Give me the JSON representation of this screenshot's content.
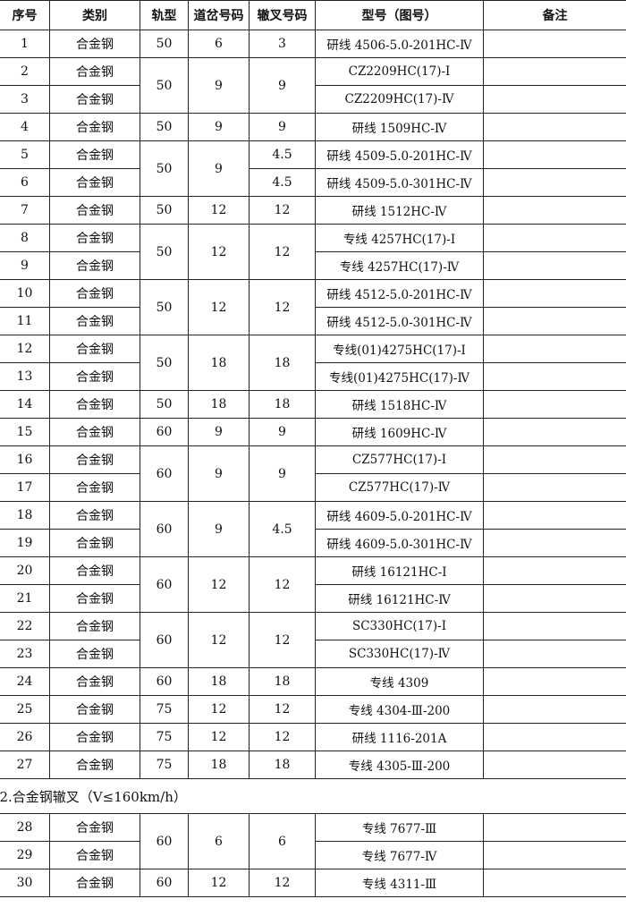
{
  "headers": [
    "序号",
    "类别",
    "轨型",
    "道岔号码",
    "辙叉号码",
    "型号（图号）",
    "备注"
  ],
  "sections": [
    {
      "title": "",
      "groups": [
        {
          "rail": "50",
          "turnout": "6",
          "frog": "3",
          "items": [
            {
              "no": "1",
              "type": "合金钢",
              "model": "研线 4506-5.0-201HC-Ⅳ",
              "note": ""
            }
          ]
        },
        {
          "rail": "50",
          "turnout": "9",
          "frog": "9",
          "items": [
            {
              "no": "2",
              "type": "合金钢",
              "model": "CZ2209HC(17)-Ⅰ",
              "note": ""
            },
            {
              "no": "3",
              "type": "合金钢",
              "model": "CZ2209HC(17)-Ⅳ",
              "note": ""
            }
          ]
        },
        {
          "rail": "50",
          "turnout": "9",
          "frog": "9",
          "items": [
            {
              "no": "4",
              "type": "合金钢",
              "model": "研线 1509HC-Ⅳ",
              "note": ""
            }
          ]
        },
        {
          "rail": "50",
          "turnout": "9",
          "items": [
            {
              "no": "5",
              "type": "合金钢",
              "frog": "4.5",
              "model": "研线 4509-5.0-201HC-Ⅳ",
              "note": ""
            },
            {
              "no": "6",
              "type": "合金钢",
              "frog": "4.5",
              "model": "研线 4509-5.0-301HC-Ⅳ",
              "note": ""
            }
          ]
        },
        {
          "rail": "50",
          "turnout": "12",
          "frog": "12",
          "items": [
            {
              "no": "7",
              "type": "合金钢",
              "model": "研线 1512HC-Ⅳ",
              "note": ""
            }
          ]
        },
        {
          "rail": "50",
          "turnout": "12",
          "frog": "12",
          "items": [
            {
              "no": "8",
              "type": "合金钢",
              "model": "专线 4257HC(17)-Ⅰ",
              "note": ""
            },
            {
              "no": "9",
              "type": "合金钢",
              "model": "专线 4257HC(17)-Ⅳ",
              "note": ""
            }
          ]
        },
        {
          "rail": "50",
          "turnout": "12",
          "frog": "12",
          "items": [
            {
              "no": "10",
              "type": "合金钢",
              "model": "研线 4512-5.0-201HC-Ⅳ",
              "note": ""
            },
            {
              "no": "11",
              "type": "合金钢",
              "model": "研线 4512-5.0-301HC-Ⅳ",
              "note": ""
            }
          ]
        },
        {
          "rail": "50",
          "turnout": "18",
          "frog": "18",
          "items": [
            {
              "no": "12",
              "type": "合金钢",
              "model": "专线(01)4275HC(17)-Ⅰ",
              "note": ""
            },
            {
              "no": "13",
              "type": "合金钢",
              "model": "专线(01)4275HC(17)-Ⅳ",
              "note": ""
            }
          ]
        },
        {
          "rail": "50",
          "turnout": "18",
          "frog": "18",
          "items": [
            {
              "no": "14",
              "type": "合金钢",
              "model": "研线 1518HC-Ⅳ",
              "note": ""
            }
          ]
        },
        {
          "rail": "60",
          "turnout": "9",
          "frog": "9",
          "items": [
            {
              "no": "15",
              "type": "合金钢",
              "model": "研线 1609HC-Ⅳ",
              "note": ""
            }
          ]
        },
        {
          "rail": "60",
          "turnout": "9",
          "frog": "9",
          "items": [
            {
              "no": "16",
              "type": "合金钢",
              "model": "CZ577HC(17)-Ⅰ",
              "note": ""
            },
            {
              "no": "17",
              "type": "合金钢",
              "model": "CZ577HC(17)-Ⅳ",
              "note": ""
            }
          ]
        },
        {
          "rail": "60",
          "turnout": "9",
          "frog": "4.5",
          "items": [
            {
              "no": "18",
              "type": "合金钢",
              "model": "研线 4609-5.0-201HC-Ⅳ",
              "note": ""
            },
            {
              "no": "19",
              "type": "合金钢",
              "model": "研线 4609-5.0-301HC-Ⅳ",
              "note": ""
            }
          ]
        },
        {
          "rail": "60",
          "turnout": "12",
          "frog": "12",
          "items": [
            {
              "no": "20",
              "type": "合金钢",
              "model": "研线 16121HC-Ⅰ",
              "note": ""
            },
            {
              "no": "21",
              "type": "合金钢",
              "model": "研线 16121HC-Ⅳ",
              "note": ""
            }
          ]
        },
        {
          "rail": "60",
          "turnout": "12",
          "frog": "12",
          "items": [
            {
              "no": "22",
              "type": "合金钢",
              "model": "SC330HC(17)-Ⅰ",
              "note": ""
            },
            {
              "no": "23",
              "type": "合金钢",
              "model": "SC330HC(17)-Ⅳ",
              "note": ""
            }
          ]
        },
        {
          "rail": "60",
          "turnout": "18",
          "frog": "18",
          "items": [
            {
              "no": "24",
              "type": "合金钢",
              "model": "专线 4309",
              "note": ""
            }
          ]
        },
        {
          "rail": "75",
          "turnout": "12",
          "frog": "12",
          "items": [
            {
              "no": "25",
              "type": "合金钢",
              "model": "专线 4304-Ⅲ-200",
              "note": ""
            }
          ]
        },
        {
          "rail": "75",
          "turnout": "12",
          "frog": "12",
          "items": [
            {
              "no": "26",
              "type": "合金钢",
              "model": "研线 1116-201A",
              "note": ""
            }
          ]
        },
        {
          "rail": "75",
          "turnout": "18",
          "frog": "18",
          "items": [
            {
              "no": "27",
              "type": "合金钢",
              "model": "专线 4305-Ⅲ-200",
              "note": ""
            }
          ]
        }
      ]
    },
    {
      "title": "2.合金钢辙叉（V≤160km/h）",
      "groups": [
        {
          "rail": "60",
          "turnout": "6",
          "frog": "6",
          "items": [
            {
              "no": "28",
              "type": "合金钢",
              "model": "专线 7677-Ⅲ",
              "note": ""
            },
            {
              "no": "29",
              "type": "合金钢",
              "model": "专线 7677-Ⅳ",
              "note": ""
            }
          ]
        },
        {
          "rail": "60",
          "turnout": "12",
          "frog": "12",
          "items": [
            {
              "no": "30",
              "type": "合金钢",
              "model": "专线 4311-Ⅲ",
              "note": ""
            }
          ]
        }
      ]
    }
  ]
}
